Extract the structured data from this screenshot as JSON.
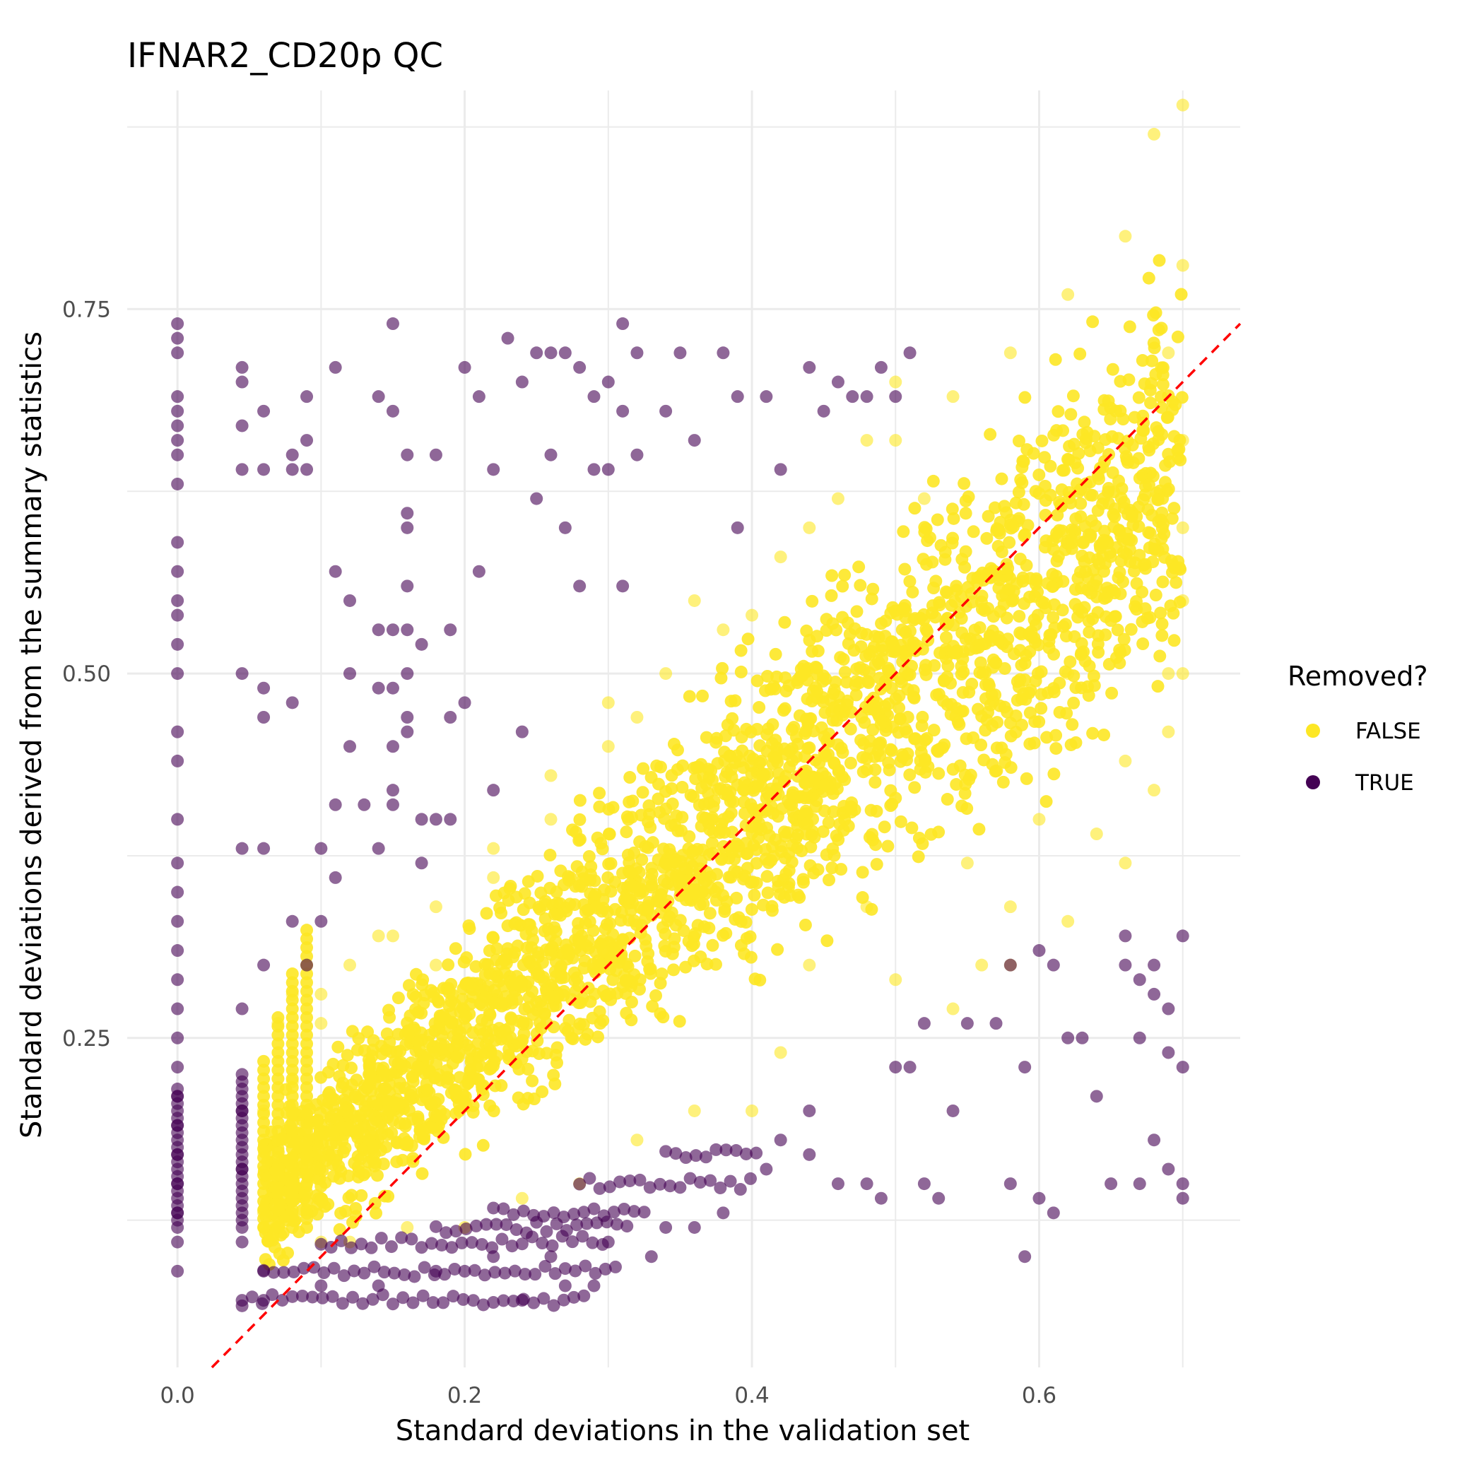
{
  "chart_data": {
    "type": "scatter",
    "title": "IFNAR2_CD20p QC",
    "xlabel": "Standard deviations in the validation set",
    "ylabel": "Standard deviations derived from the summary statistics",
    "xlim": [
      -0.035,
      0.74
    ],
    "ylim": [
      0.024,
      0.9
    ],
    "x_ticks": [
      0.0,
      0.2,
      0.4,
      0.6
    ],
    "x_tick_labels": [
      "0.0",
      "0.2",
      "0.4",
      "0.6"
    ],
    "y_ticks": [
      0.25,
      0.5,
      0.75
    ],
    "y_tick_labels": [
      "0.25",
      "0.50",
      "0.75"
    ],
    "grid": true,
    "reference_line": {
      "type": "identity",
      "style": "dashed",
      "color": "#ff0000"
    },
    "legend": {
      "title": "Removed?",
      "position": "right",
      "entries": [
        {
          "label": "FALSE",
          "color": "#fde725"
        },
        {
          "label": "TRUE",
          "color": "#440154"
        }
      ]
    },
    "series": [
      {
        "name": "FALSE",
        "color": "#fde725",
        "trend": {
          "from": [
            0.06,
            0.14
          ],
          "to": [
            0.7,
            0.64
          ]
        },
        "points": [
          [
            0.06,
            0.13
          ],
          [
            0.06,
            0.2
          ],
          [
            0.07,
            0.26
          ],
          [
            0.08,
            0.16
          ],
          [
            0.08,
            0.28
          ],
          [
            0.1,
            0.18
          ],
          [
            0.1,
            0.28
          ],
          [
            0.12,
            0.2
          ],
          [
            0.14,
            0.32
          ],
          [
            0.18,
            0.3
          ],
          [
            0.2,
            0.24
          ],
          [
            0.22,
            0.36
          ],
          [
            0.26,
            0.4
          ],
          [
            0.3,
            0.45
          ],
          [
            0.34,
            0.5
          ],
          [
            0.38,
            0.53
          ],
          [
            0.42,
            0.58
          ],
          [
            0.46,
            0.62
          ],
          [
            0.5,
            0.66
          ],
          [
            0.54,
            0.69
          ],
          [
            0.58,
            0.72
          ],
          [
            0.62,
            0.76
          ],
          [
            0.66,
            0.8
          ],
          [
            0.68,
            0.87
          ],
          [
            0.7,
            0.89
          ],
          [
            0.7,
            0.78
          ],
          [
            0.7,
            0.6
          ],
          [
            0.7,
            0.5
          ],
          [
            0.69,
            0.46
          ],
          [
            0.68,
            0.42
          ],
          [
            0.66,
            0.44
          ],
          [
            0.62,
            0.5
          ],
          [
            0.6,
            0.4
          ],
          [
            0.58,
            0.34
          ],
          [
            0.56,
            0.3
          ],
          [
            0.54,
            0.27
          ],
          [
            0.5,
            0.29
          ],
          [
            0.48,
            0.34
          ],
          [
            0.44,
            0.3
          ],
          [
            0.42,
            0.24
          ],
          [
            0.4,
            0.2
          ],
          [
            0.36,
            0.2
          ],
          [
            0.32,
            0.18
          ],
          [
            0.28,
            0.15
          ],
          [
            0.24,
            0.14
          ],
          [
            0.2,
            0.12
          ],
          [
            0.16,
            0.12
          ],
          [
            0.12,
            0.11
          ],
          [
            0.1,
            0.11
          ],
          [
            0.55,
            0.37
          ],
          [
            0.64,
            0.39
          ],
          [
            0.66,
            0.37
          ],
          [
            0.62,
            0.33
          ],
          [
            0.58,
            0.3
          ],
          [
            0.52,
            0.62
          ],
          [
            0.5,
            0.7
          ],
          [
            0.48,
            0.66
          ],
          [
            0.44,
            0.6
          ],
          [
            0.4,
            0.54
          ],
          [
            0.36,
            0.55
          ],
          [
            0.32,
            0.47
          ],
          [
            0.3,
            0.48
          ],
          [
            0.26,
            0.43
          ],
          [
            0.22,
            0.38
          ],
          [
            0.18,
            0.34
          ],
          [
            0.15,
            0.32
          ],
          [
            0.12,
            0.3
          ],
          [
            0.1,
            0.26
          ],
          [
            0.08,
            0.22
          ],
          [
            0.07,
            0.18
          ],
          [
            0.7,
            0.55
          ],
          [
            0.7,
            0.66
          ],
          [
            0.69,
            0.72
          ],
          [
            0.68,
            0.62
          ],
          [
            0.69,
            0.5
          ]
        ]
      },
      {
        "name": "TRUE",
        "color": "#440154",
        "points": [
          [
            0.0,
            0.74
          ],
          [
            0.0,
            0.73
          ],
          [
            0.0,
            0.72
          ],
          [
            0.0,
            0.69
          ],
          [
            0.0,
            0.68
          ],
          [
            0.0,
            0.67
          ],
          [
            0.0,
            0.66
          ],
          [
            0.0,
            0.65
          ],
          [
            0.0,
            0.63
          ],
          [
            0.0,
            0.59
          ],
          [
            0.0,
            0.57
          ],
          [
            0.0,
            0.55
          ],
          [
            0.0,
            0.54
          ],
          [
            0.0,
            0.52
          ],
          [
            0.0,
            0.5
          ],
          [
            0.0,
            0.46
          ],
          [
            0.0,
            0.44
          ],
          [
            0.0,
            0.4
          ],
          [
            0.0,
            0.37
          ],
          [
            0.0,
            0.35
          ],
          [
            0.0,
            0.33
          ],
          [
            0.0,
            0.31
          ],
          [
            0.0,
            0.29
          ],
          [
            0.0,
            0.27
          ],
          [
            0.0,
            0.25
          ],
          [
            0.0,
            0.23
          ],
          [
            0.0,
            0.21
          ],
          [
            0.0,
            0.19
          ],
          [
            0.0,
            0.17
          ],
          [
            0.0,
            0.15
          ],
          [
            0.0,
            0.13
          ],
          [
            0.0,
            0.11
          ],
          [
            0.0,
            0.09
          ],
          [
            0.045,
            0.71
          ],
          [
            0.045,
            0.7
          ],
          [
            0.045,
            0.67
          ],
          [
            0.045,
            0.64
          ],
          [
            0.045,
            0.5
          ],
          [
            0.045,
            0.38
          ],
          [
            0.045,
            0.27
          ],
          [
            0.045,
            0.2
          ],
          [
            0.045,
            0.16
          ],
          [
            0.045,
            0.11
          ],
          [
            0.045,
            0.07
          ],
          [
            0.06,
            0.68
          ],
          [
            0.06,
            0.64
          ],
          [
            0.06,
            0.49
          ],
          [
            0.06,
            0.47
          ],
          [
            0.06,
            0.38
          ],
          [
            0.06,
            0.3
          ],
          [
            0.06,
            0.07
          ],
          [
            0.06,
            0.09
          ],
          [
            0.08,
            0.65
          ],
          [
            0.08,
            0.64
          ],
          [
            0.09,
            0.69
          ],
          [
            0.09,
            0.66
          ],
          [
            0.09,
            0.64
          ],
          [
            0.08,
            0.48
          ],
          [
            0.08,
            0.33
          ],
          [
            0.09,
            0.3
          ],
          [
            0.1,
            0.38
          ],
          [
            0.1,
            0.33
          ],
          [
            0.11,
            0.71
          ],
          [
            0.11,
            0.57
          ],
          [
            0.11,
            0.41
          ],
          [
            0.11,
            0.36
          ],
          [
            0.12,
            0.55
          ],
          [
            0.12,
            0.5
          ],
          [
            0.12,
            0.45
          ],
          [
            0.13,
            0.41
          ],
          [
            0.14,
            0.69
          ],
          [
            0.14,
            0.53
          ],
          [
            0.14,
            0.49
          ],
          [
            0.14,
            0.38
          ],
          [
            0.15,
            0.74
          ],
          [
            0.15,
            0.68
          ],
          [
            0.15,
            0.53
          ],
          [
            0.15,
            0.49
          ],
          [
            0.15,
            0.45
          ],
          [
            0.15,
            0.42
          ],
          [
            0.15,
            0.41
          ],
          [
            0.16,
            0.65
          ],
          [
            0.16,
            0.61
          ],
          [
            0.16,
            0.6
          ],
          [
            0.16,
            0.56
          ],
          [
            0.16,
            0.53
          ],
          [
            0.16,
            0.47
          ],
          [
            0.16,
            0.46
          ],
          [
            0.16,
            0.5
          ],
          [
            0.17,
            0.52
          ],
          [
            0.17,
            0.4
          ],
          [
            0.17,
            0.37
          ],
          [
            0.18,
            0.65
          ],
          [
            0.18,
            0.4
          ],
          [
            0.19,
            0.53
          ],
          [
            0.19,
            0.47
          ],
          [
            0.19,
            0.4
          ],
          [
            0.2,
            0.71
          ],
          [
            0.2,
            0.48
          ],
          [
            0.21,
            0.57
          ],
          [
            0.21,
            0.69
          ],
          [
            0.22,
            0.64
          ],
          [
            0.22,
            0.42
          ],
          [
            0.23,
            0.73
          ],
          [
            0.24,
            0.7
          ],
          [
            0.24,
            0.46
          ],
          [
            0.25,
            0.72
          ],
          [
            0.25,
            0.62
          ],
          [
            0.26,
            0.72
          ],
          [
            0.26,
            0.65
          ],
          [
            0.27,
            0.72
          ],
          [
            0.27,
            0.6
          ],
          [
            0.28,
            0.71
          ],
          [
            0.28,
            0.56
          ],
          [
            0.29,
            0.69
          ],
          [
            0.29,
            0.64
          ],
          [
            0.3,
            0.7
          ],
          [
            0.3,
            0.64
          ],
          [
            0.31,
            0.74
          ],
          [
            0.31,
            0.68
          ],
          [
            0.31,
            0.56
          ],
          [
            0.32,
            0.72
          ],
          [
            0.32,
            0.65
          ],
          [
            0.34,
            0.68
          ],
          [
            0.35,
            0.72
          ],
          [
            0.36,
            0.66
          ],
          [
            0.38,
            0.72
          ],
          [
            0.39,
            0.6
          ],
          [
            0.39,
            0.69
          ],
          [
            0.41,
            0.69
          ],
          [
            0.42,
            0.64
          ],
          [
            0.44,
            0.71
          ],
          [
            0.45,
            0.68
          ],
          [
            0.46,
            0.7
          ],
          [
            0.47,
            0.69
          ],
          [
            0.48,
            0.69
          ],
          [
            0.49,
            0.71
          ],
          [
            0.5,
            0.69
          ],
          [
            0.51,
            0.72
          ],
          [
            0.1,
            0.08
          ],
          [
            0.14,
            0.08
          ],
          [
            0.18,
            0.09
          ],
          [
            0.22,
            0.1
          ],
          [
            0.26,
            0.1
          ],
          [
            0.3,
            0.11
          ],
          [
            0.34,
            0.12
          ],
          [
            0.38,
            0.13
          ],
          [
            0.41,
            0.16
          ],
          [
            0.42,
            0.18
          ],
          [
            0.44,
            0.2
          ],
          [
            0.44,
            0.17
          ],
          [
            0.46,
            0.15
          ],
          [
            0.49,
            0.14
          ],
          [
            0.5,
            0.23
          ],
          [
            0.51,
            0.23
          ],
          [
            0.52,
            0.15
          ],
          [
            0.53,
            0.14
          ],
          [
            0.54,
            0.2
          ],
          [
            0.55,
            0.26
          ],
          [
            0.57,
            0.26
          ],
          [
            0.58,
            0.15
          ],
          [
            0.59,
            0.23
          ],
          [
            0.59,
            0.1
          ],
          [
            0.6,
            0.14
          ],
          [
            0.61,
            0.13
          ],
          [
            0.62,
            0.25
          ],
          [
            0.63,
            0.25
          ],
          [
            0.64,
            0.21
          ],
          [
            0.65,
            0.15
          ],
          [
            0.66,
            0.3
          ],
          [
            0.66,
            0.32
          ],
          [
            0.67,
            0.29
          ],
          [
            0.67,
            0.25
          ],
          [
            0.68,
            0.3
          ],
          [
            0.68,
            0.28
          ],
          [
            0.69,
            0.27
          ],
          [
            0.69,
            0.24
          ],
          [
            0.7,
            0.32
          ],
          [
            0.7,
            0.23
          ],
          [
            0.7,
            0.15
          ],
          [
            0.7,
            0.14
          ],
          [
            0.69,
            0.16
          ],
          [
            0.68,
            0.18
          ],
          [
            0.67,
            0.15
          ],
          [
            0.61,
            0.3
          ],
          [
            0.6,
            0.31
          ],
          [
            0.58,
            0.3
          ],
          [
            0.52,
            0.26
          ],
          [
            0.48,
            0.15
          ],
          [
            0.36,
            0.12
          ],
          [
            0.33,
            0.1
          ],
          [
            0.29,
            0.08
          ],
          [
            0.27,
            0.08
          ],
          [
            0.24,
            0.07
          ]
        ],
        "low_bands": [
          {
            "y": 0.11,
            "x_range": [
              0.1,
              0.3
            ]
          },
          {
            "y": 0.09,
            "x_range": [
              0.06,
              0.31
            ]
          },
          {
            "y": 0.07,
            "x_range": [
              0.045,
              0.29
            ]
          },
          {
            "y": 0.13,
            "x_range": [
              0.22,
              0.33
            ]
          },
          {
            "y": 0.12,
            "x_range": [
              0.18,
              0.32
            ]
          },
          {
            "y": 0.15,
            "x_range": [
              0.28,
              0.4
            ]
          },
          {
            "y": 0.17,
            "x_range": [
              0.34,
              0.41
            ]
          }
        ],
        "vertical_bands": [
          {
            "x": 0.0,
            "y_range": [
              0.12,
              0.22
            ]
          },
          {
            "x": 0.045,
            "y_range": [
              0.12,
              0.23
            ]
          }
        ]
      }
    ]
  }
}
